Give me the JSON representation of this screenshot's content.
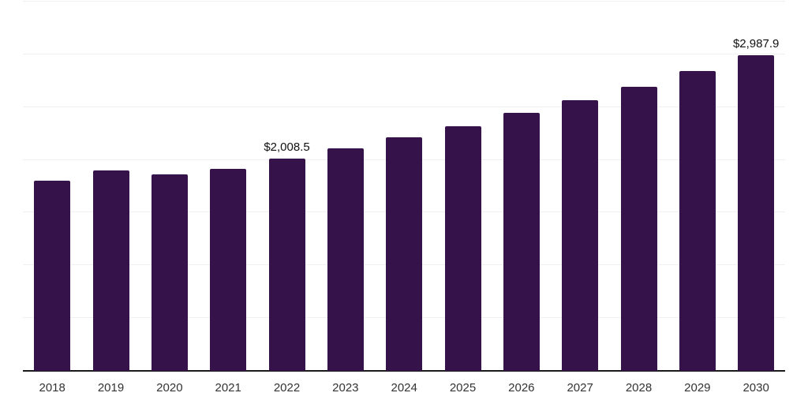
{
  "chart_data": {
    "type": "bar",
    "title": "",
    "categories": [
      "2018",
      "2019",
      "2020",
      "2021",
      "2022",
      "2023",
      "2024",
      "2025",
      "2026",
      "2027",
      "2028",
      "2029",
      "2030"
    ],
    "values": [
      1805,
      1902,
      1866,
      1912,
      2008.5,
      2108,
      2211,
      2321,
      2444,
      2569,
      2694,
      2843,
      2987.9
    ],
    "annotations": [
      {
        "category": "2022",
        "text": "$2,008.5"
      },
      {
        "category": "2030",
        "text": "$2,987.9"
      }
    ],
    "xlabel": "",
    "ylabel": "",
    "ylim": [
      0,
      3500
    ],
    "yticks": [
      0,
      500,
      1000,
      1500,
      2000,
      2500,
      3000,
      3500
    ],
    "y_tick_labels_visible": false,
    "grid": true,
    "legend": "none",
    "colors": {
      "bar": "#36124a",
      "gridline": "#f0f0f0",
      "axis_line": "#1a1a1a",
      "x_label_text": "#333333",
      "data_label_text": "#111111",
      "background": "#ffffff"
    }
  }
}
